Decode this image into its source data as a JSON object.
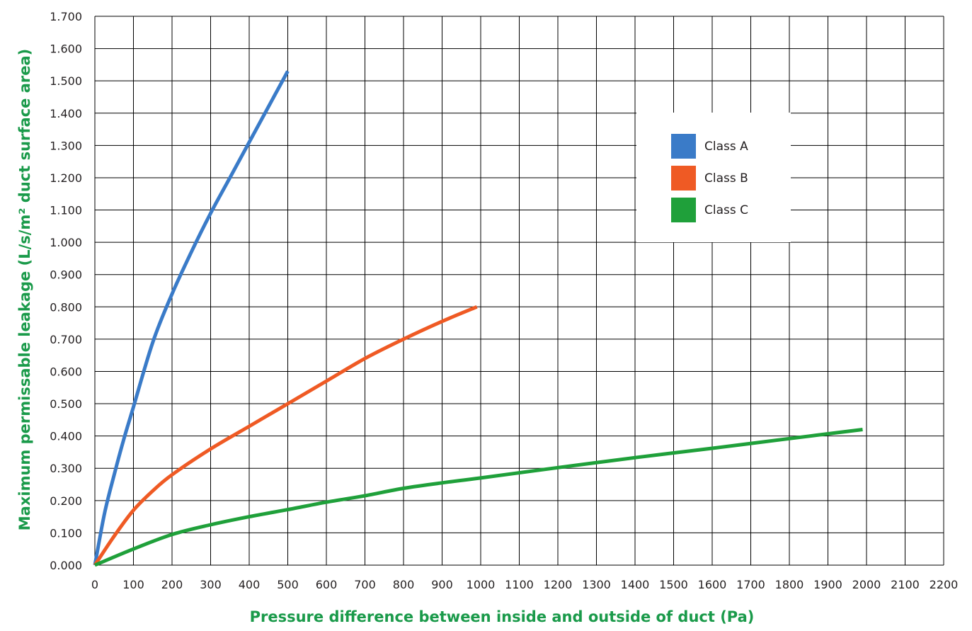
{
  "chart_data": {
    "type": "line",
    "xlabel": "Pressure difference between inside and outside of duct (Pa)",
    "ylabel": "Maximum permissable leakage (L/s/m² duct surface area)",
    "xlim": [
      0,
      2200
    ],
    "ylim": [
      0,
      1.7
    ],
    "x_ticks": [
      "0",
      "100",
      "200",
      "300",
      "400",
      "500",
      "600",
      "700",
      "800",
      "900",
      "1000",
      "1100",
      "1200",
      "1300",
      "1400",
      "1500",
      "1600",
      "1700",
      "1800",
      "1900",
      "2000",
      "2100",
      "2200"
    ],
    "y_ticks": [
      "0.000",
      "0.100",
      "0.200",
      "0.300",
      "0.400",
      "0.500",
      "0.600",
      "0.700",
      "0.800",
      "0.900",
      "1.000",
      "1.100",
      "1.200",
      "1.300",
      "1.400",
      "1.500",
      "1.600",
      "1.700"
    ],
    "grid": true,
    "legend_position": "top-right",
    "series": [
      {
        "name": "Class A",
        "color": "#3a7bc8",
        "x": [
          0,
          25,
          50,
          75,
          100,
          150,
          200,
          250,
          300,
          350,
          400,
          450,
          500
        ],
        "y": [
          0,
          0.16,
          0.28,
          0.39,
          0.49,
          0.69,
          0.84,
          0.97,
          1.09,
          1.2,
          1.31,
          1.42,
          1.53
        ]
      },
      {
        "name": "Class B",
        "color": "#ef5a24",
        "x": [
          0,
          50,
          100,
          150,
          200,
          300,
          400,
          500,
          600,
          700,
          800,
          900,
          990
        ],
        "y": [
          0,
          0.09,
          0.17,
          0.23,
          0.28,
          0.36,
          0.43,
          0.5,
          0.57,
          0.64,
          0.7,
          0.755,
          0.8
        ]
      },
      {
        "name": "Class C",
        "color": "#1fa03a",
        "x": [
          0,
          100,
          200,
          300,
          400,
          500,
          600,
          700,
          800,
          900,
          1000,
          1200,
          1400,
          1600,
          1800,
          1990
        ],
        "y": [
          0,
          0.05,
          0.095,
          0.125,
          0.15,
          0.172,
          0.195,
          0.215,
          0.238,
          0.255,
          0.27,
          0.302,
          0.333,
          0.362,
          0.392,
          0.42
        ]
      }
    ]
  }
}
